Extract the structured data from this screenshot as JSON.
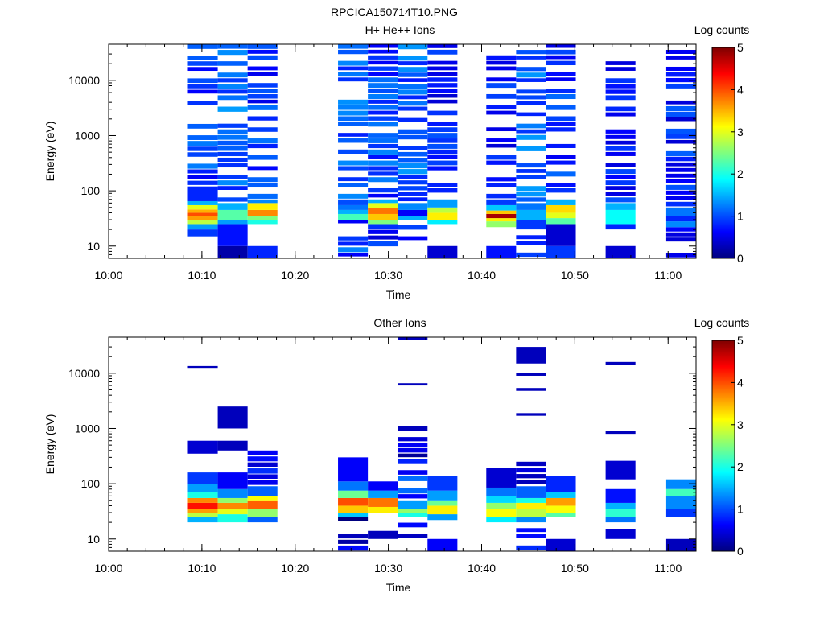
{
  "figure_title": "RPCICA150714T10.PNG",
  "colors": {
    "colormap": [
      "#00007f",
      "#0000ff",
      "#007fff",
      "#00ffff",
      "#7fff7f",
      "#ffff00",
      "#ff7f00",
      "#ff0000",
      "#7f0000"
    ],
    "background": "#ffffff",
    "axis": "#000000"
  },
  "chart_data": [
    {
      "type": "heatmap",
      "title": "H+ He++ Ions",
      "xlabel": "Time",
      "ylabel": "Energy (eV)",
      "xlim": [
        "10:00",
        "11:03"
      ],
      "ylim": [
        6,
        45000
      ],
      "yscale": "log",
      "x_ticks": [
        "10:00",
        "10:10",
        "10:20",
        "10:30",
        "10:40",
        "10:50",
        "11:00"
      ],
      "y_ticks": [
        "10",
        "100",
        "1000",
        "10000"
      ],
      "colorbar": {
        "label": "Log counts",
        "range": [
          0,
          5
        ],
        "ticks": [
          "0",
          "1",
          "2",
          "3",
          "4",
          "5"
        ]
      },
      "grid": false,
      "columns": [
        {
          "start": "10:08.5",
          "end": "10:11.7",
          "levels": [
            [
              6,
              20,
              null
            ],
            [
              15,
              20,
              0.9
            ],
            [
              20,
              25,
              1.4
            ],
            [
              25,
              30,
              2.8
            ],
            [
              30,
              35,
              3.6
            ],
            [
              35,
              40,
              4.0
            ],
            [
              40,
              46,
              3.5
            ],
            [
              46,
              55,
              3.0
            ],
            [
              55,
              65,
              1.5
            ],
            [
              65,
              120,
              0.8
            ],
            [
              120,
              45000,
              0.9
            ]
          ]
        },
        {
          "start": "10:11.7",
          "end": "10:14.9",
          "levels": [
            [
              6,
              10,
              0.2
            ],
            [
              10,
              25,
              0.7
            ],
            [
              25,
              30,
              1.4
            ],
            [
              30,
              45,
              2.3
            ],
            [
              45,
              60,
              1.5
            ],
            [
              60,
              45000,
              1.0
            ]
          ]
        },
        {
          "start": "10:14.9",
          "end": "10:18.1",
          "levels": [
            [
              6,
              10,
              0.8
            ],
            [
              10,
              25,
              null
            ],
            [
              25,
              30,
              2.0
            ],
            [
              30,
              35,
              2.5
            ],
            [
              35,
              45,
              3.7
            ],
            [
              45,
              60,
              3.2
            ],
            [
              60,
              70,
              1.3
            ],
            [
              70,
              45000,
              0.8
            ]
          ]
        },
        {
          "start": "10:24.6",
          "end": "10:27.8",
          "levels": [
            [
              6,
              30,
              0.9
            ],
            [
              30,
              38,
              2.2
            ],
            [
              38,
              45,
              1.5
            ],
            [
              45,
              55,
              1.2
            ],
            [
              55,
              70,
              1.0
            ],
            [
              70,
              45000,
              1.0
            ]
          ]
        },
        {
          "start": "10:27.8",
          "end": "10:31.0",
          "levels": [
            [
              6,
              25,
              0.6
            ],
            [
              25,
              30,
              2.5
            ],
            [
              30,
              38,
              3.4
            ],
            [
              38,
              48,
              3.8
            ],
            [
              48,
              60,
              3.0
            ],
            [
              60,
              70,
              1.5
            ],
            [
              70,
              45000,
              0.9
            ]
          ]
        },
        {
          "start": "10:31.0",
          "end": "10:34.2",
          "levels": [
            [
              6,
              30,
              0.8
            ],
            [
              30,
              35,
              1.5
            ],
            [
              35,
              45,
              0.6
            ],
            [
              45,
              60,
              1.3
            ],
            [
              60,
              45000,
              1.0
            ]
          ]
        },
        {
          "start": "10:34.2",
          "end": "10:37.4",
          "levels": [
            [
              6,
              10,
              0.4
            ],
            [
              10,
              25,
              null
            ],
            [
              25,
              30,
              1.8
            ],
            [
              30,
              40,
              3.2
            ],
            [
              40,
              50,
              2.8
            ],
            [
              50,
              70,
              1.4
            ],
            [
              70,
              45000,
              0.7
            ]
          ]
        },
        {
          "start": "10:40.5",
          "end": "10:43.7",
          "levels": [
            [
              6,
              10,
              0.7
            ],
            [
              10,
              22,
              null
            ],
            [
              22,
              28,
              2.6
            ],
            [
              28,
              32,
              3.2
            ],
            [
              32,
              38,
              4.8
            ],
            [
              38,
              44,
              3.4
            ],
            [
              44,
              55,
              1.6
            ],
            [
              55,
              70,
              0.9
            ],
            [
              70,
              45000,
              0.7
            ]
          ]
        },
        {
          "start": "10:43.7",
          "end": "10:46.9",
          "levels": [
            [
              6,
              20,
              1.0
            ],
            [
              20,
              30,
              0.9
            ],
            [
              30,
              45,
              1.5
            ],
            [
              45,
              60,
              1.2
            ],
            [
              60,
              45000,
              1.1
            ]
          ]
        },
        {
          "start": "10:46.9",
          "end": "10:50.1",
          "levels": [
            [
              6,
              10,
              0.9
            ],
            [
              10,
              25,
              0.4
            ],
            [
              25,
              32,
              2.3
            ],
            [
              32,
              40,
              3.0
            ],
            [
              40,
              55,
              3.3
            ],
            [
              55,
              70,
              1.5
            ],
            [
              70,
              45000,
              0.8
            ]
          ]
        },
        {
          "start": "10:53.3",
          "end": "10:56.5",
          "levels": [
            [
              6,
              10,
              0.4
            ],
            [
              10,
              20,
              null
            ],
            [
              20,
              25,
              0.8
            ],
            [
              25,
              45,
              1.9
            ],
            [
              45,
              60,
              1.5
            ],
            [
              60,
              45000,
              0.7
            ]
          ]
        },
        {
          "start": "10:59.8",
          "end": "11:03.0",
          "levels": [
            [
              6,
              22,
              0.4
            ],
            [
              22,
              28,
              1.3
            ],
            [
              28,
              35,
              0.8
            ],
            [
              35,
              50,
              1.2
            ],
            [
              50,
              45000,
              0.7
            ]
          ]
        }
      ]
    },
    {
      "type": "heatmap",
      "title": "Other Ions",
      "xlabel": "Time",
      "ylabel": "Energy (eV)",
      "xlim": [
        "10:00",
        "11:03"
      ],
      "ylim": [
        6,
        45000
      ],
      "yscale": "log",
      "x_ticks": [
        "10:00",
        "10:10",
        "10:20",
        "10:30",
        "10:40",
        "10:50",
        "11:00"
      ],
      "y_ticks": [
        "10",
        "100",
        "1000",
        "10000"
      ],
      "colorbar": {
        "label": "Log counts",
        "range": [
          0,
          5
        ],
        "ticks": [
          "0",
          "1",
          "2",
          "3",
          "4",
          "5"
        ]
      },
      "grid": false,
      "columns": [
        {
          "start": "10:08.5",
          "end": "10:11.7",
          "levels": [
            [
              20,
              25,
              1.5
            ],
            [
              25,
              30,
              2.8
            ],
            [
              30,
              35,
              3.6
            ],
            [
              35,
              45,
              4.3
            ],
            [
              45,
              55,
              3.7
            ],
            [
              55,
              70,
              2.0
            ],
            [
              70,
              100,
              1.4
            ],
            [
              100,
              160,
              0.9
            ],
            [
              350,
              600,
              0.4
            ],
            [
              12500,
              13500,
              0.3
            ]
          ]
        },
        {
          "start": "10:11.7",
          "end": "10:14.9",
          "levels": [
            [
              20,
              28,
              2.0
            ],
            [
              28,
              35,
              3.0
            ],
            [
              35,
              45,
              3.7
            ],
            [
              45,
              55,
              2.6
            ],
            [
              55,
              80,
              1.3
            ],
            [
              80,
              160,
              0.6
            ],
            [
              400,
              600,
              0.3
            ],
            [
              1000,
              2500,
              0.3
            ]
          ]
        },
        {
          "start": "10:14.9",
          "end": "10:18.1",
          "levels": [
            [
              20,
              25,
              1.1
            ],
            [
              25,
              35,
              2.6
            ],
            [
              35,
              50,
              3.9
            ],
            [
              50,
              60,
              3.1
            ],
            [
              60,
              90,
              1.1
            ],
            [
              90,
              400,
              0.5
            ]
          ]
        },
        {
          "start": "10:24.6",
          "end": "10:27.8",
          "levels": [
            [
              6,
              25,
              0.3
            ],
            [
              25,
              30,
              1.6
            ],
            [
              30,
              40,
              3.4
            ],
            [
              40,
              55,
              4.0
            ],
            [
              55,
              75,
              2.4
            ],
            [
              75,
              110,
              1.2
            ],
            [
              110,
              300,
              0.6
            ]
          ]
        },
        {
          "start": "10:27.8",
          "end": "10:31.0",
          "levels": [
            [
              6,
              10,
              null
            ],
            [
              10,
              14,
              0.3
            ],
            [
              14,
              30,
              null
            ],
            [
              30,
              38,
              3.2
            ],
            [
              38,
              55,
              3.8
            ],
            [
              55,
              75,
              1.4
            ],
            [
              75,
              110,
              0.6
            ]
          ]
        },
        {
          "start": "10:31.0",
          "end": "10:34.2",
          "levels": [
            [
              6,
              25,
              0.5
            ],
            [
              25,
              30,
              2.0
            ],
            [
              30,
              35,
              2.6
            ],
            [
              35,
              50,
              1.4
            ],
            [
              50,
              140,
              0.8
            ],
            [
              140,
              700,
              0.4
            ],
            [
              900,
              1100,
              0.3
            ],
            [
              6000,
              6600,
              0.3
            ],
            [
              40000,
              45000,
              0.3
            ]
          ]
        },
        {
          "start": "10:34.2",
          "end": "10:37.4",
          "levels": [
            [
              6,
              10,
              0.6
            ],
            [
              10,
              22,
              null
            ],
            [
              22,
              28,
              1.4
            ],
            [
              28,
              40,
              3.2
            ],
            [
              40,
              50,
              2.4
            ],
            [
              50,
              75,
              1.4
            ],
            [
              75,
              140,
              0.9
            ]
          ]
        },
        {
          "start": "10:40.5",
          "end": "10:43.7",
          "levels": [
            [
              20,
              25,
              1.8
            ],
            [
              25,
              35,
              3.1
            ],
            [
              35,
              45,
              2.6
            ],
            [
              45,
              60,
              1.7
            ],
            [
              60,
              85,
              1.2
            ],
            [
              85,
              190,
              0.4
            ]
          ]
        },
        {
          "start": "10:43.7",
          "end": "10:46.9",
          "levels": [
            [
              6,
              20,
              0.9
            ],
            [
              20,
              25,
              1.3
            ],
            [
              25,
              35,
              2.8
            ],
            [
              35,
              45,
              3.2
            ],
            [
              45,
              55,
              2.0
            ],
            [
              55,
              90,
              1.1
            ],
            [
              90,
              250,
              0.5
            ],
            [
              1700,
              1900,
              0.3
            ],
            [
              4800,
              5400,
              0.3
            ],
            [
              9000,
              10200,
              0.3
            ],
            [
              15000,
              30000,
              0.3
            ]
          ]
        },
        {
          "start": "10:46.9",
          "end": "10:50.1",
          "levels": [
            [
              6,
              10,
              0.4
            ],
            [
              10,
              25,
              null
            ],
            [
              25,
              30,
              2.3
            ],
            [
              30,
              40,
              3.1
            ],
            [
              40,
              55,
              3.6
            ],
            [
              55,
              70,
              1.6
            ],
            [
              70,
              140,
              0.8
            ]
          ]
        },
        {
          "start": "10:53.3",
          "end": "10:56.5",
          "levels": [
            [
              10,
              15,
              0.4
            ],
            [
              20,
              25,
              1.2
            ],
            [
              25,
              35,
              2.1
            ],
            [
              35,
              45,
              1.5
            ],
            [
              45,
              80,
              0.7
            ],
            [
              120,
              260,
              0.4
            ],
            [
              800,
              900,
              0.3
            ],
            [
              14000,
              16000,
              0.3
            ]
          ]
        },
        {
          "start": "10:59.8",
          "end": "11:03.0",
          "levels": [
            [
              6,
              10,
              0.3
            ],
            [
              25,
              35,
              0.9
            ],
            [
              35,
              60,
              1.3
            ],
            [
              60,
              80,
              2.2
            ],
            [
              80,
              120,
              1.3
            ]
          ]
        }
      ]
    }
  ]
}
